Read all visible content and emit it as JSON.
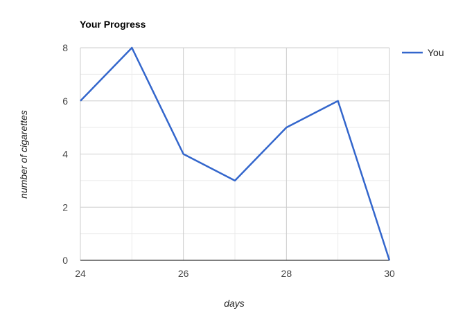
{
  "chart_data": {
    "type": "line",
    "title": "Your Progress",
    "xlabel": "days",
    "ylabel": "number of cigarettes",
    "x": [
      24,
      25,
      26,
      27,
      28,
      29,
      30
    ],
    "series": [
      {
        "name": "You",
        "values": [
          6,
          8,
          4,
          3,
          5,
          6,
          0
        ],
        "color": "#3366cc"
      }
    ],
    "xlim": [
      24,
      30
    ],
    "ylim": [
      0,
      8
    ],
    "x_ticks": [
      "24",
      "26",
      "28",
      "30"
    ],
    "y_ticks": [
      "0",
      "2",
      "4",
      "6",
      "8"
    ],
    "grid": true,
    "legend_position": "right",
    "colors": {
      "major_grid": "#cccccc",
      "minor_grid": "#ebebeb",
      "baseline": "#333333",
      "tick_text": "#444444",
      "title_text": "#000000",
      "axis_title_text": "#222222"
    }
  }
}
